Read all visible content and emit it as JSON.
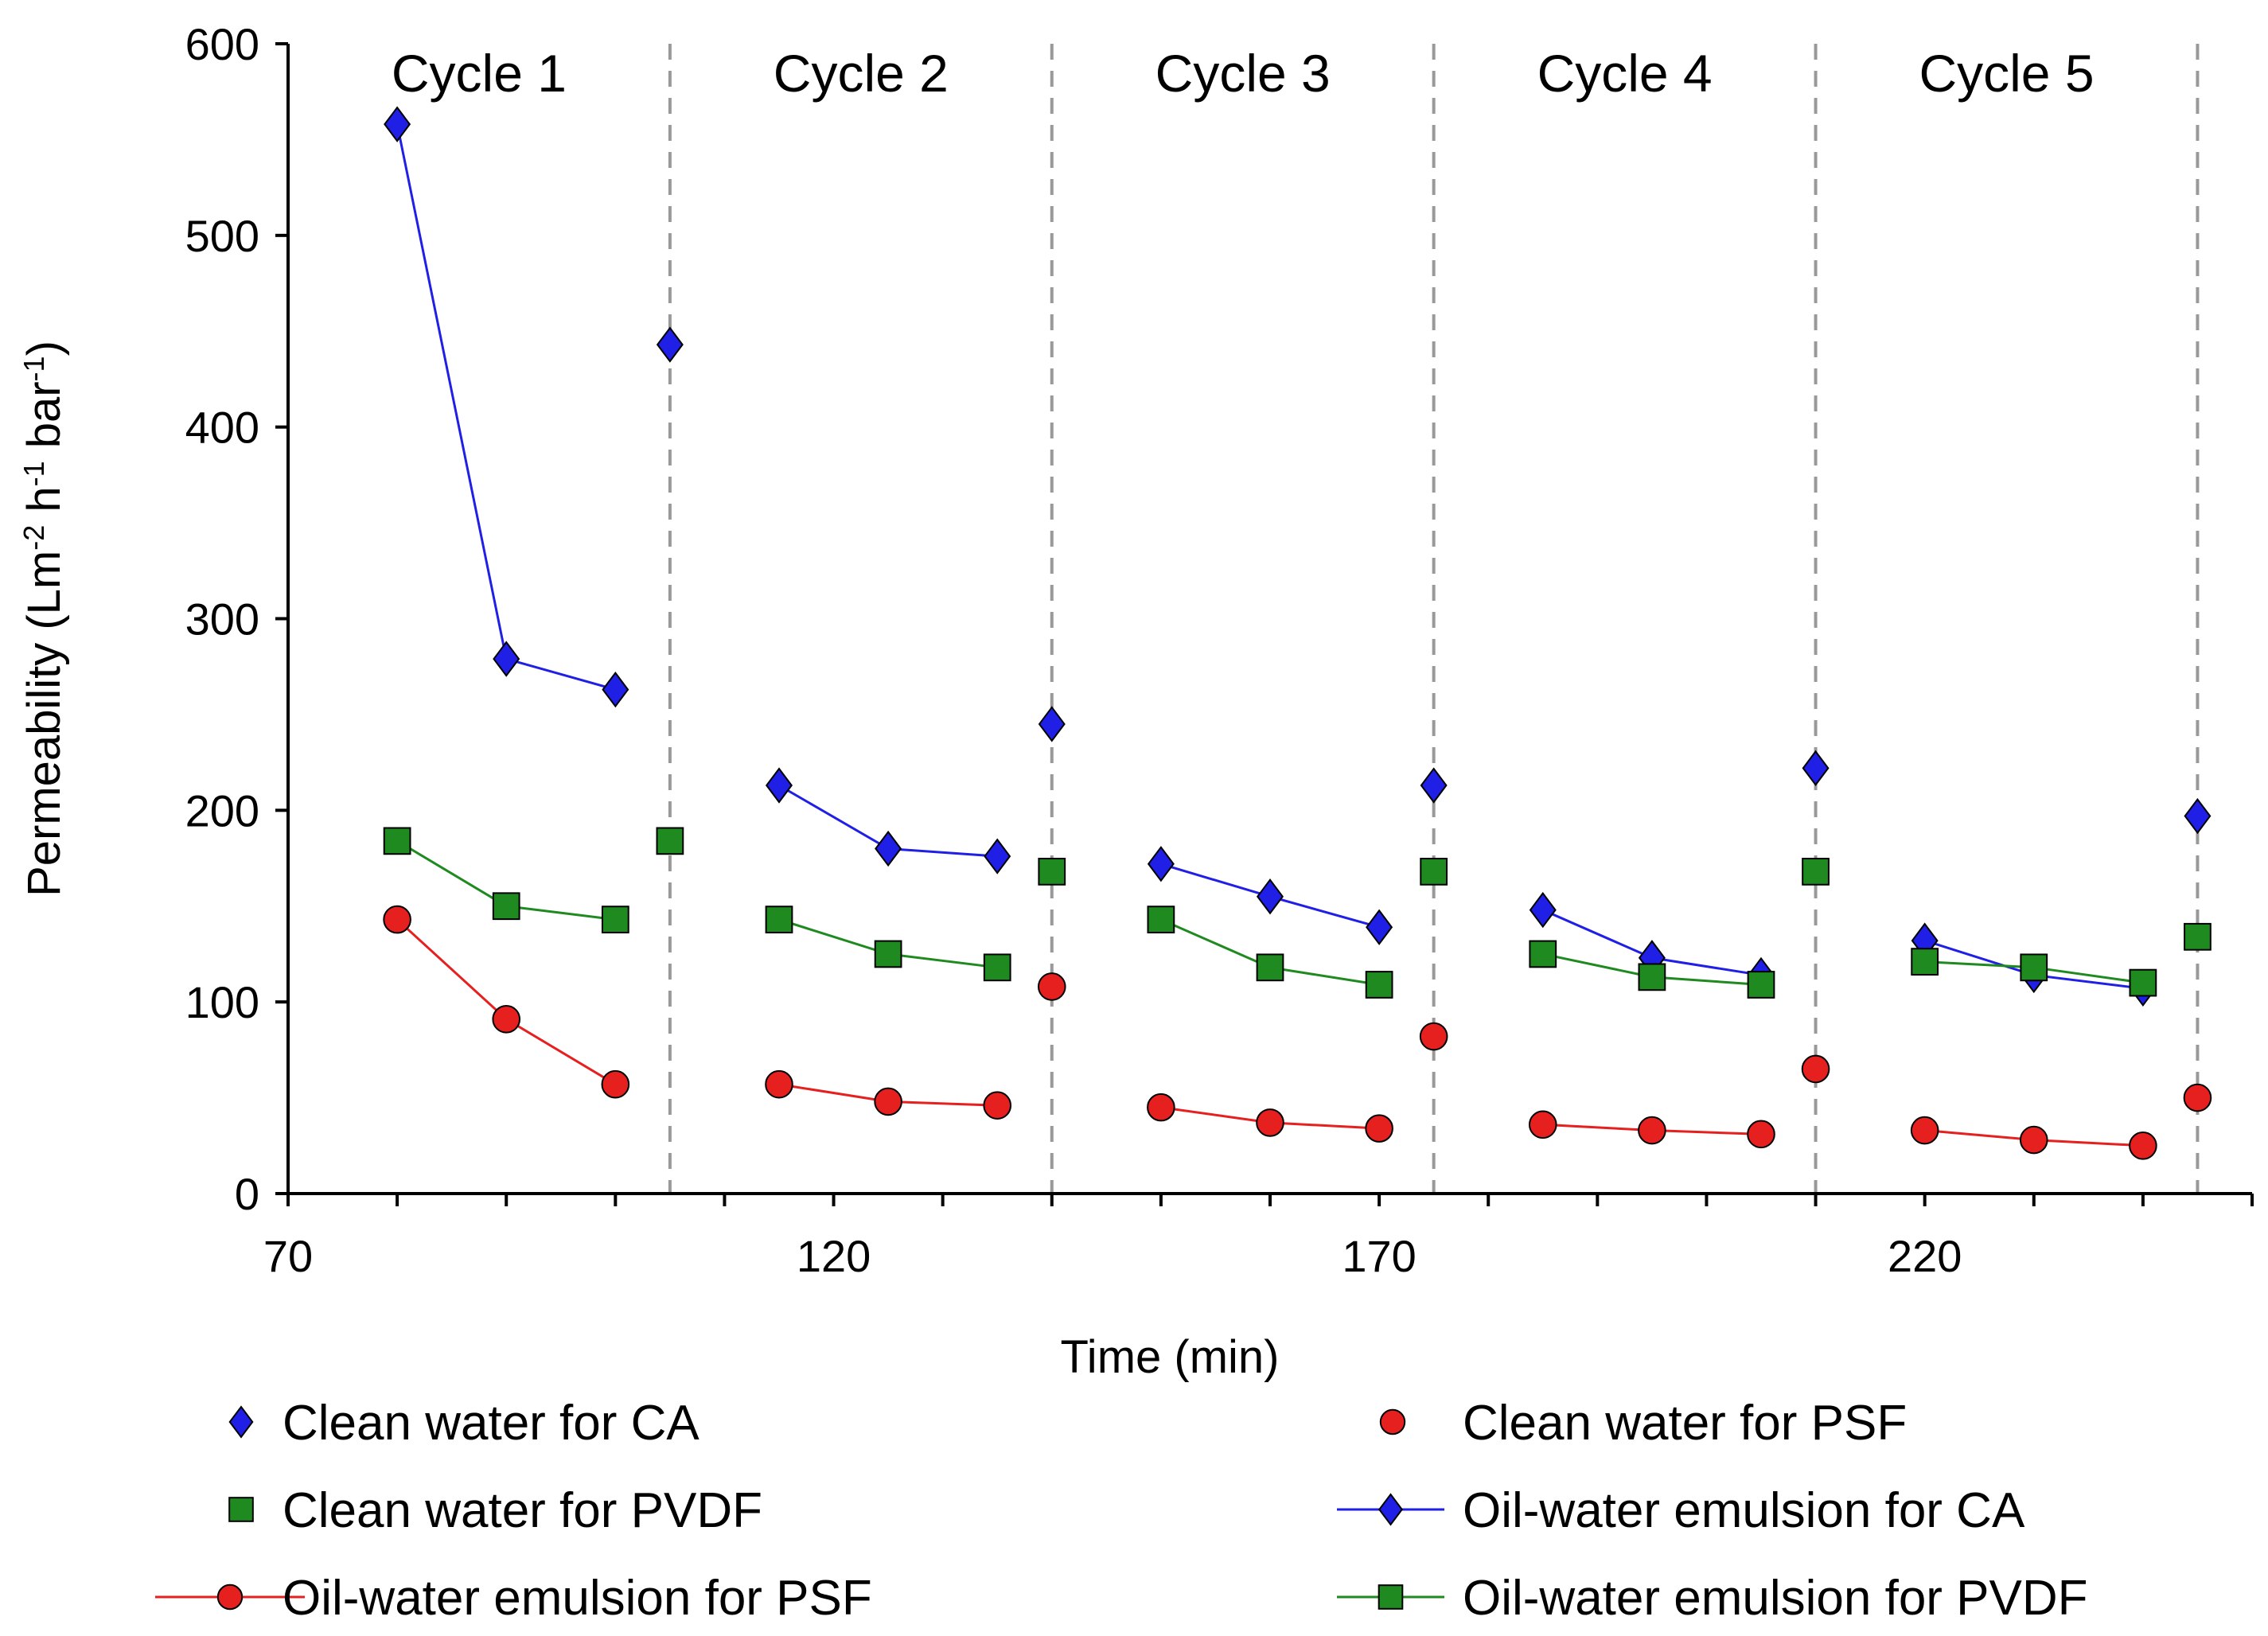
{
  "chart_data": {
    "type": "line",
    "xlabel": "Time (min)",
    "ylabel": "Permeability  (Lm-2 h-1 bar-1)",
    "ylabel_parts": {
      "main": "Permeability  (Lm",
      "sup1": "-2",
      "mid1": " h",
      "sup2": "-1",
      "mid2": " bar",
      "sup3": "-1",
      "end": ")"
    },
    "xlim": [
      70,
      250
    ],
    "ylim": [
      0,
      600
    ],
    "x_ticks": [
      70,
      120,
      170,
      220
    ],
    "y_ticks": [
      0,
      100,
      200,
      300,
      400,
      500,
      600
    ],
    "cycle_dividers": [
      105,
      140,
      175,
      210,
      245
    ],
    "cycles": [
      {
        "label": "Cycle 1",
        "x": 87.5
      },
      {
        "label": "Cycle 2",
        "x": 122.5
      },
      {
        "label": "Cycle 3",
        "x": 157.5
      },
      {
        "label": "Cycle 4",
        "x": 192.5
      },
      {
        "label": "Cycle 5",
        "x": 227.5
      }
    ],
    "series": [
      {
        "name": "Clean water for CA",
        "color": "#1f1fe6",
        "marker": "diamond",
        "line": false,
        "points": [
          [
            105,
            443
          ],
          [
            140,
            245
          ],
          [
            175,
            213
          ],
          [
            210,
            222
          ],
          [
            245,
            197
          ]
        ]
      },
      {
        "name": "Clean water for PSF",
        "color": "#e61f1f",
        "marker": "circle",
        "line": false,
        "points": [
          [
            140,
            108
          ],
          [
            175,
            82
          ],
          [
            210,
            65
          ],
          [
            245,
            50
          ]
        ]
      },
      {
        "name": "Clean water for PVDF",
        "color": "#1f8a1f",
        "marker": "square",
        "line": false,
        "points": [
          [
            105,
            184
          ],
          [
            140,
            168
          ],
          [
            175,
            168
          ],
          [
            210,
            168
          ],
          [
            245,
            134
          ]
        ]
      },
      {
        "name": "Oil-water emulsion for CA",
        "color": "#1f1fe6",
        "marker": "diamond",
        "line": true,
        "segments": [
          [
            [
              80,
              558
            ],
            [
              90,
              279
            ],
            [
              100,
              263
            ]
          ],
          [
            [
              115,
              213
            ],
            [
              125,
              180
            ],
            [
              135,
              176
            ]
          ],
          [
            [
              150,
              172
            ],
            [
              160,
              155
            ],
            [
              170,
              139
            ]
          ],
          [
            [
              185,
              148
            ],
            [
              195,
              123
            ],
            [
              205,
              114
            ]
          ],
          [
            [
              220,
              132
            ],
            [
              230,
              114
            ],
            [
              240,
              107
            ]
          ]
        ]
      },
      {
        "name": "Oil-water emulsion for PSF",
        "color": "#e61f1f",
        "marker": "circle",
        "line": true,
        "segments": [
          [
            [
              80,
              143
            ],
            [
              90,
              91
            ],
            [
              100,
              57
            ]
          ],
          [
            [
              115,
              57
            ],
            [
              125,
              48
            ],
            [
              135,
              46
            ]
          ],
          [
            [
              150,
              45
            ],
            [
              160,
              37
            ],
            [
              170,
              34
            ]
          ],
          [
            [
              185,
              36
            ],
            [
              195,
              33
            ],
            [
              205,
              31
            ]
          ],
          [
            [
              220,
              33
            ],
            [
              230,
              28
            ],
            [
              240,
              25
            ]
          ]
        ]
      },
      {
        "name": "Oil-water emulsion for PVDF",
        "color": "#1f8a1f",
        "marker": "square",
        "line": true,
        "segments": [
          [
            [
              80,
              184
            ],
            [
              90,
              150
            ],
            [
              100,
              143
            ]
          ],
          [
            [
              115,
              143
            ],
            [
              125,
              125
            ],
            [
              135,
              118
            ]
          ],
          [
            [
              150,
              143
            ],
            [
              160,
              118
            ],
            [
              170,
              109
            ]
          ],
          [
            [
              185,
              125
            ],
            [
              195,
              113
            ],
            [
              205,
              109
            ]
          ],
          [
            [
              220,
              121
            ],
            [
              230,
              118
            ],
            [
              240,
              110
            ]
          ]
        ]
      }
    ],
    "legend": [
      {
        "label": "Clean water for CA",
        "series": 0
      },
      {
        "label": "Clean water for PSF",
        "series": 1
      },
      {
        "label": "Clean water for PVDF",
        "series": 2
      },
      {
        "label": "Oil-water emulsion for CA",
        "series": 3
      },
      {
        "label": "Oil-water emulsion for PSF",
        "series": 4
      },
      {
        "label": "Oil-water emulsion for PVDF",
        "series": 5
      }
    ]
  }
}
